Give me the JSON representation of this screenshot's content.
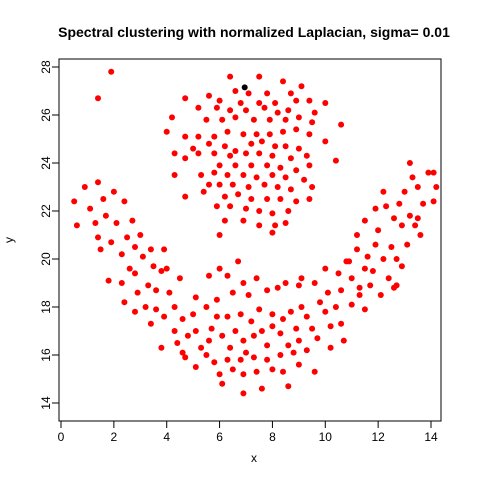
{
  "chart_data": {
    "type": "scatter",
    "title": "Spectral clustering with normalized Laplacian, sigma= 0.01",
    "xlabel": "x",
    "ylabel": "y",
    "xlim": [
      0,
      14.4
    ],
    "ylim": [
      14,
      28.2
    ],
    "xticks": [
      "0",
      "2",
      "4",
      "6",
      "8",
      "10",
      "12",
      "14"
    ],
    "yticks": [
      "14",
      "16",
      "18",
      "20",
      "22",
      "24",
      "26",
      "28"
    ],
    "grid": false,
    "legend": "none",
    "series": [
      {
        "color": "#ff0000",
        "points": [
          [
            1.4,
            26.7
          ],
          [
            1.9,
            27.8
          ],
          [
            6.4,
            27.6
          ],
          [
            7.5,
            27.6
          ],
          [
            8.4,
            27.4
          ],
          [
            9.1,
            27.2
          ],
          [
            6.6,
            27.0
          ],
          [
            7.1,
            26.9
          ],
          [
            7.8,
            26.9
          ],
          [
            8.7,
            26.9
          ],
          [
            5.6,
            26.8
          ],
          [
            4.7,
            26.7
          ],
          [
            6.0,
            26.6
          ],
          [
            6.8,
            26.5
          ],
          [
            7.5,
            26.5
          ],
          [
            8.1,
            26.5
          ],
          [
            8.9,
            26.6
          ],
          [
            9.4,
            26.6
          ],
          [
            10.0,
            26.5
          ],
          [
            5.2,
            26.3
          ],
          [
            5.9,
            26.3
          ],
          [
            6.4,
            26.2
          ],
          [
            7.0,
            26.2
          ],
          [
            7.7,
            26.3
          ],
          [
            8.2,
            26.1
          ],
          [
            8.6,
            26.2
          ],
          [
            9.6,
            26.1
          ],
          [
            4.2,
            25.9
          ],
          [
            5.5,
            25.8
          ],
          [
            6.1,
            25.8
          ],
          [
            6.6,
            25.9
          ],
          [
            7.3,
            25.8
          ],
          [
            7.9,
            25.8
          ],
          [
            8.5,
            25.8
          ],
          [
            9.0,
            25.9
          ],
          [
            9.5,
            25.7
          ],
          [
            10.6,
            25.6
          ],
          [
            4.0,
            25.3
          ],
          [
            4.7,
            25.1
          ],
          [
            5.2,
            25.1
          ],
          [
            5.8,
            25.1
          ],
          [
            6.3,
            25.3
          ],
          [
            6.9,
            25.2
          ],
          [
            7.4,
            25.2
          ],
          [
            7.9,
            25.2
          ],
          [
            8.4,
            25.3
          ],
          [
            8.9,
            25.4
          ],
          [
            9.4,
            25.2
          ],
          [
            4.3,
            24.4
          ],
          [
            5.0,
            24.6
          ],
          [
            5.6,
            24.8
          ],
          [
            6.2,
            24.7
          ],
          [
            6.6,
            24.5
          ],
          [
            7.2,
            24.8
          ],
          [
            7.6,
            24.9
          ],
          [
            8.1,
            24.7
          ],
          [
            8.5,
            24.7
          ],
          [
            9.0,
            24.6
          ],
          [
            10.0,
            24.9
          ],
          [
            5.2,
            24.4
          ],
          [
            5.8,
            24.4
          ],
          [
            6.4,
            24.3
          ],
          [
            7.0,
            24.4
          ],
          [
            7.5,
            24.4
          ],
          [
            8.0,
            24.3
          ],
          [
            8.7,
            24.2
          ],
          [
            9.3,
            24.3
          ],
          [
            10.4,
            24.1
          ],
          [
            4.7,
            24.2
          ],
          [
            6.0,
            23.9
          ],
          [
            6.6,
            23.9
          ],
          [
            7.2,
            23.9
          ],
          [
            7.8,
            23.9
          ],
          [
            8.3,
            23.8
          ],
          [
            8.9,
            23.7
          ],
          [
            9.4,
            23.9
          ],
          [
            4.3,
            23.5
          ],
          [
            5.3,
            23.5
          ],
          [
            5.8,
            23.6
          ],
          [
            6.3,
            23.5
          ],
          [
            6.9,
            23.5
          ],
          [
            7.4,
            23.4
          ],
          [
            8.0,
            23.5
          ],
          [
            8.5,
            23.4
          ],
          [
            9.2,
            23.3
          ],
          [
            5.6,
            23.1
          ],
          [
            6.0,
            23.1
          ],
          [
            6.5,
            23.1
          ],
          [
            7.1,
            23.0
          ],
          [
            7.7,
            23.1
          ],
          [
            8.2,
            23.0
          ],
          [
            8.7,
            22.9
          ],
          [
            9.5,
            23.0
          ],
          [
            4.7,
            22.6
          ],
          [
            5.4,
            22.8
          ],
          [
            6.2,
            22.6
          ],
          [
            6.7,
            22.7
          ],
          [
            7.2,
            22.5
          ],
          [
            7.8,
            22.5
          ],
          [
            8.3,
            22.5
          ],
          [
            8.9,
            22.4
          ],
          [
            9.4,
            22.5
          ],
          [
            5.9,
            22.2
          ],
          [
            6.4,
            22.2
          ],
          [
            7.0,
            22.1
          ],
          [
            7.5,
            22.0
          ],
          [
            8.0,
            21.9
          ],
          [
            8.6,
            22.0
          ],
          [
            6.2,
            21.6
          ],
          [
            6.9,
            21.6
          ],
          [
            7.5,
            21.4
          ],
          [
            8.1,
            21.4
          ],
          [
            8.5,
            21.5
          ],
          [
            8.0,
            21.1
          ],
          [
            0.5,
            22.4
          ],
          [
            0.6,
            21.4
          ],
          [
            0.9,
            23.0
          ],
          [
            1.1,
            22.1
          ],
          [
            1.4,
            23.2
          ],
          [
            1.6,
            22.5
          ],
          [
            1.3,
            21.5
          ],
          [
            1.7,
            21.8
          ],
          [
            1.4,
            20.9
          ],
          [
            2.0,
            22.8
          ],
          [
            2.1,
            21.5
          ],
          [
            1.9,
            20.7
          ],
          [
            1.5,
            20.4
          ],
          [
            2.4,
            22.4
          ],
          [
            2.7,
            21.6
          ],
          [
            2.5,
            20.9
          ],
          [
            2.3,
            20.2
          ],
          [
            1.8,
            19.1
          ],
          [
            2.8,
            20.5
          ],
          [
            2.6,
            19.6
          ],
          [
            3.0,
            21.0
          ],
          [
            3.1,
            20.1
          ],
          [
            2.8,
            19.4
          ],
          [
            3.4,
            20.4
          ],
          [
            3.5,
            19.7
          ],
          [
            3.3,
            18.9
          ],
          [
            3.9,
            20.4
          ],
          [
            3.8,
            19.5
          ],
          [
            3.6,
            18.7
          ],
          [
            2.3,
            19.0
          ],
          [
            2.4,
            18.2
          ],
          [
            2.9,
            18.6
          ],
          [
            3.2,
            18.0
          ],
          [
            2.8,
            17.8
          ],
          [
            3.6,
            17.9
          ],
          [
            4.1,
            18.6
          ],
          [
            4.0,
            19.6
          ],
          [
            4.5,
            19.2
          ],
          [
            4.3,
            18.0
          ],
          [
            3.9,
            17.6
          ],
          [
            3.4,
            17.3
          ],
          [
            4.6,
            17.5
          ],
          [
            4.3,
            17.0
          ],
          [
            3.8,
            16.3
          ],
          [
            4.4,
            16.5
          ],
          [
            4.8,
            16.8
          ],
          [
            4.6,
            16.1
          ],
          [
            5.0,
            17.7
          ],
          [
            5.1,
            18.4
          ],
          [
            5.5,
            18.0
          ],
          [
            5.6,
            19.3
          ],
          [
            6.0,
            19.6
          ],
          [
            5.9,
            18.3
          ],
          [
            6.0,
            21.0
          ],
          [
            6.3,
            19.3
          ],
          [
            6.5,
            18.6
          ],
          [
            6.7,
            19.9
          ],
          [
            6.9,
            19.0
          ],
          [
            7.1,
            18.5
          ],
          [
            7.4,
            19.2
          ],
          [
            7.8,
            18.7
          ],
          [
            8.2,
            18.8
          ],
          [
            8.5,
            19.0
          ],
          [
            9.0,
            18.9
          ],
          [
            9.1,
            19.2
          ],
          [
            9.6,
            19.0
          ],
          [
            10.0,
            19.6
          ],
          [
            10.5,
            19.4
          ],
          [
            10.8,
            19.9
          ],
          [
            11.0,
            19.2
          ],
          [
            11.2,
            20.4
          ],
          [
            11.5,
            19.6
          ],
          [
            11.7,
            18.9
          ],
          [
            5.1,
            17.0
          ],
          [
            5.3,
            16.3
          ],
          [
            5.7,
            17.1
          ],
          [
            5.6,
            16.6
          ],
          [
            5.5,
            16.0
          ],
          [
            5.9,
            17.6
          ],
          [
            6.1,
            16.8
          ],
          [
            6.3,
            17.6
          ],
          [
            6.4,
            16.3
          ],
          [
            6.6,
            17.0
          ],
          [
            6.8,
            17.7
          ],
          [
            6.9,
            16.6
          ],
          [
            7.0,
            16.1
          ],
          [
            7.2,
            17.4
          ],
          [
            7.3,
            16.8
          ],
          [
            7.5,
            17.9
          ],
          [
            7.6,
            17.0
          ],
          [
            7.8,
            16.4
          ],
          [
            8.0,
            17.7
          ],
          [
            8.0,
            17.2
          ],
          [
            8.3,
            16.9
          ],
          [
            8.4,
            17.5
          ],
          [
            8.6,
            16.4
          ],
          [
            8.7,
            17.8
          ],
          [
            8.9,
            17.1
          ],
          [
            9.0,
            16.6
          ],
          [
            9.1,
            18.0
          ],
          [
            9.3,
            17.6
          ],
          [
            9.5,
            17.1
          ],
          [
            9.7,
            16.7
          ],
          [
            9.8,
            18.2
          ],
          [
            10.0,
            17.8
          ],
          [
            10.2,
            17.2
          ],
          [
            10.4,
            18.0
          ],
          [
            10.6,
            17.3
          ],
          [
            10.7,
            16.6
          ],
          [
            10.2,
            16.3
          ],
          [
            5.8,
            15.7
          ],
          [
            6.0,
            15.2
          ],
          [
            6.3,
            15.8
          ],
          [
            6.5,
            15.4
          ],
          [
            6.1,
            14.8
          ],
          [
            6.8,
            15.8
          ],
          [
            6.9,
            15.2
          ],
          [
            6.9,
            14.4
          ],
          [
            7.3,
            15.9
          ],
          [
            7.4,
            15.3
          ],
          [
            7.6,
            14.6
          ],
          [
            7.8,
            15.8
          ],
          [
            8.0,
            15.4
          ],
          [
            8.3,
            16.0
          ],
          [
            8.4,
            15.3
          ],
          [
            8.6,
            14.7
          ],
          [
            8.8,
            16.1
          ],
          [
            9.0,
            15.6
          ],
          [
            9.3,
            16.2
          ],
          [
            9.6,
            15.3
          ],
          [
            5.1,
            15.5
          ],
          [
            4.7,
            15.9
          ],
          [
            10.1,
            18.6
          ],
          [
            10.6,
            18.7
          ],
          [
            11.0,
            18.1
          ],
          [
            11.3,
            18.5
          ],
          [
            11.5,
            17.9
          ],
          [
            11.8,
            19.5
          ],
          [
            11.6,
            20.1
          ],
          [
            11.9,
            20.6
          ],
          [
            12.0,
            21.2
          ],
          [
            12.2,
            20.0
          ],
          [
            12.1,
            18.5
          ],
          [
            12.4,
            19.2
          ],
          [
            12.5,
            20.5
          ],
          [
            12.6,
            21.7
          ],
          [
            12.3,
            22.2
          ],
          [
            12.2,
            22.8
          ],
          [
            12.8,
            22.3
          ],
          [
            12.9,
            21.4
          ],
          [
            12.7,
            20.0
          ],
          [
            12.7,
            18.9
          ],
          [
            13.1,
            20.6
          ],
          [
            13.2,
            21.8
          ],
          [
            13.0,
            22.8
          ],
          [
            13.3,
            23.4
          ],
          [
            13.2,
            24.0
          ],
          [
            13.5,
            23.0
          ],
          [
            13.7,
            22.3
          ],
          [
            13.4,
            21.4
          ],
          [
            13.6,
            21.0
          ],
          [
            13.9,
            23.6
          ],
          [
            14.1,
            22.4
          ],
          [
            14.2,
            23.0
          ],
          [
            14.1,
            23.6
          ],
          [
            11.9,
            22.1
          ],
          [
            11.5,
            21.6
          ],
          [
            11.2,
            21.0
          ],
          [
            11.3,
            18.8
          ],
          [
            12.6,
            18.8
          ],
          [
            10.9,
            19.9
          ],
          [
            12.9,
            19.7
          ],
          [
            13.5,
            21.7
          ]
        ]
      },
      {
        "color": "#000000",
        "points": [
          [
            6.95,
            27.15
          ]
        ]
      }
    ]
  }
}
